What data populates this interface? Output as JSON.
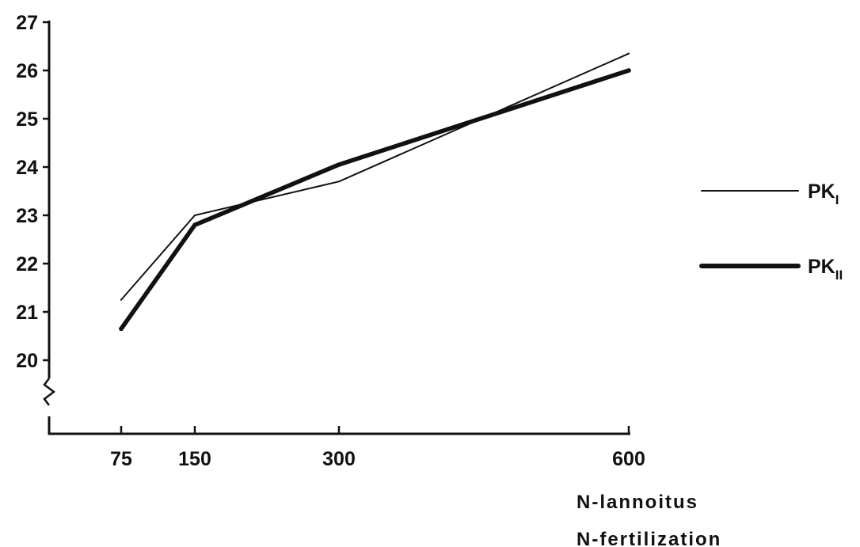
{
  "chart_data": {
    "type": "line",
    "title": "",
    "xlabel": [
      "N-lannoitus",
      "N-fertilization"
    ],
    "ylabel": "",
    "x": [
      75,
      150,
      300,
      600
    ],
    "x_tick_labels": [
      "75",
      "150",
      "300",
      "600"
    ],
    "ylim": [
      20,
      27
    ],
    "y_ticks": [
      20,
      21,
      22,
      23,
      24,
      25,
      26,
      27
    ],
    "y_tick_labels": [
      "20",
      "21",
      "22",
      "23",
      "24",
      "25",
      "26",
      "27"
    ],
    "y_axis_break": true,
    "grid": false,
    "legend_position": "right",
    "series": [
      {
        "name_base": "PK",
        "name_sub": "I",
        "line_style": "thin",
        "color": "#111111",
        "values": [
          21.25,
          23.0,
          23.7,
          26.35
        ]
      },
      {
        "name_base": "PK",
        "name_sub": "II",
        "line_style": "thick",
        "color": "#111111",
        "values": [
          20.65,
          22.8,
          24.05,
          26.0
        ]
      }
    ]
  }
}
